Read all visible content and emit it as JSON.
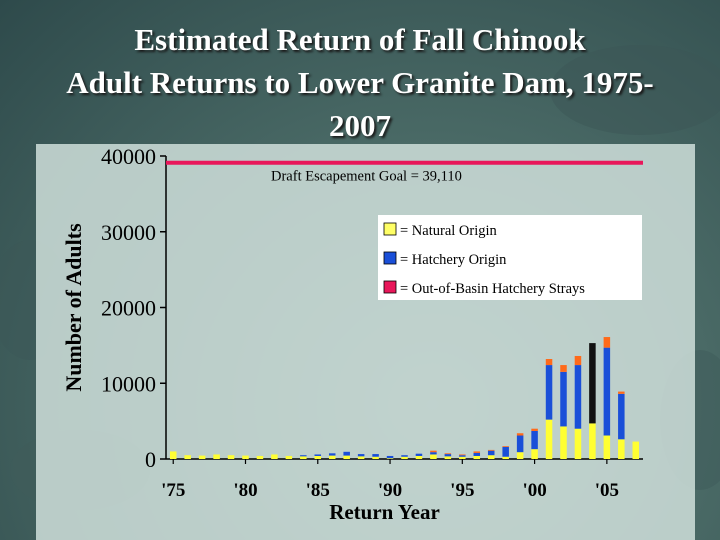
{
  "slide": {
    "title_lines": [
      "Estimated Return of Fall Chinook",
      "Adult Returns to Lower Granite Dam, 1975-",
      "2007"
    ]
  },
  "chart_data": {
    "type": "bar",
    "stacked": true,
    "ylabel": "Number of Adults",
    "xlabel": "Return Year",
    "ylim": [
      0,
      40000
    ],
    "yticks": [
      0,
      10000,
      20000,
      30000,
      40000
    ],
    "xtick_labels": [
      "'75",
      "'80",
      "'85",
      "'90",
      "'95",
      "'00",
      "'05"
    ],
    "xtick_years": [
      1975,
      1980,
      1985,
      1990,
      1995,
      2000,
      2005
    ],
    "categories": [
      1975,
      1976,
      1977,
      1978,
      1979,
      1980,
      1981,
      1982,
      1983,
      1984,
      1985,
      1986,
      1987,
      1988,
      1989,
      1990,
      1991,
      1992,
      1993,
      1994,
      1995,
      1996,
      1997,
      1998,
      1999,
      2000,
      2001,
      2002,
      2003,
      2004,
      2005,
      2006,
      2007
    ],
    "series": [
      {
        "name": "Natural Origin",
        "color": "#ffff33",
        "values": [
          1000,
          500,
          450,
          600,
          500,
          450,
          400,
          600,
          400,
          350,
          400,
          450,
          450,
          350,
          300,
          100,
          300,
          400,
          600,
          350,
          300,
          400,
          500,
          300,
          900,
          1300,
          5200,
          4300,
          4000,
          4700,
          3100,
          2600,
          2300
        ]
      },
      {
        "name": "Hatchery Origin",
        "color": "#1a4fd8",
        "values": [
          0,
          0,
          0,
          0,
          0,
          0,
          0,
          0,
          0,
          150,
          200,
          300,
          500,
          300,
          350,
          300,
          200,
          300,
          300,
          300,
          200,
          400,
          600,
          1300,
          2200,
          2400,
          7200,
          7200,
          8400,
          0,
          11600,
          6000,
          0
        ]
      },
      {
        "name": "Out-of-Basin Hatchery Strays",
        "color": "#ff6a1a",
        "values": [
          0,
          0,
          0,
          0,
          0,
          0,
          0,
          0,
          0,
          0,
          0,
          0,
          0,
          0,
          0,
          0,
          0,
          0,
          200,
          100,
          100,
          200,
          100,
          100,
          300,
          300,
          800,
          900,
          1200,
          0,
          1400,
          300,
          0
        ]
      }
    ],
    "other_bar": {
      "year": 2004,
      "value": 10600,
      "base": 4700,
      "color": "#111111"
    },
    "goal_line": {
      "value": 39110,
      "label": "Draft Escapement Goal = 39,110",
      "color": "#e8175a"
    },
    "legend": {
      "placement": "top-right",
      "items": [
        {
          "label": "= Natural Origin",
          "color": "#ffff66"
        },
        {
          "label": "= Hatchery Origin",
          "color": "#1a4fd8"
        },
        {
          "label": "= Out-of-Basin Hatchery Strays",
          "color": "#e8175a"
        }
      ]
    },
    "grid": false
  }
}
